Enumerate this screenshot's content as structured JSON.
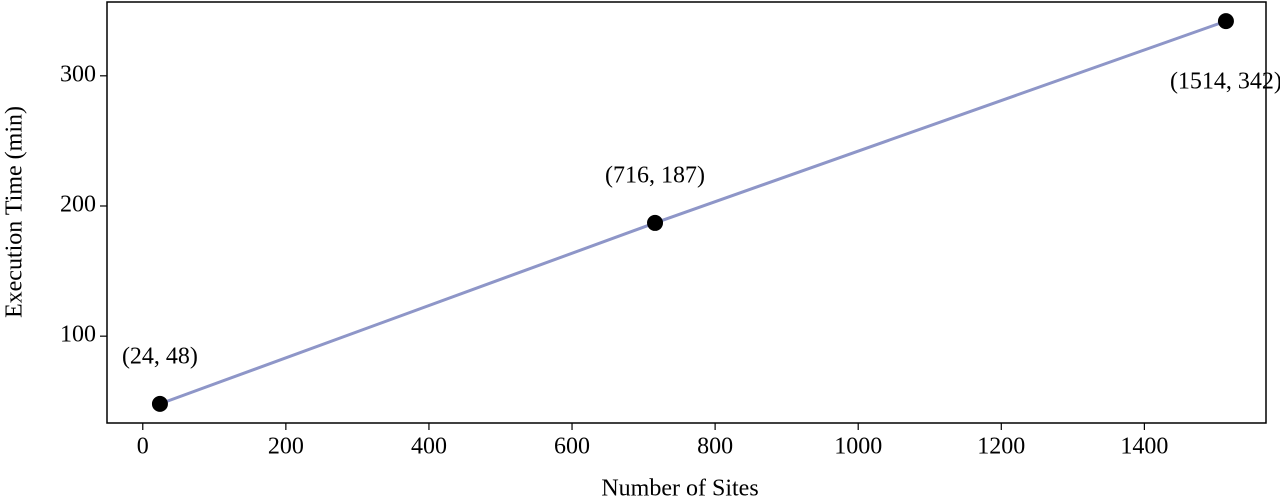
{
  "chart_data": {
    "type": "line",
    "xlabel": "Number of Sites",
    "ylabel": "Execution Time (min)",
    "x": [
      24,
      716,
      1514
    ],
    "values": [
      48,
      187,
      342
    ],
    "value_labels": [
      "(24, 48)",
      "(716, 187)",
      "(1514, 342)"
    ],
    "color": "#8e96c8",
    "xlim": [
      -50,
      1570
    ],
    "ylim": [
      33.3,
      356.7
    ],
    "xticks": [
      0,
      200,
      400,
      600,
      800,
      1000,
      1200,
      1400
    ],
    "yticks": [
      100,
      200,
      300
    ]
  }
}
